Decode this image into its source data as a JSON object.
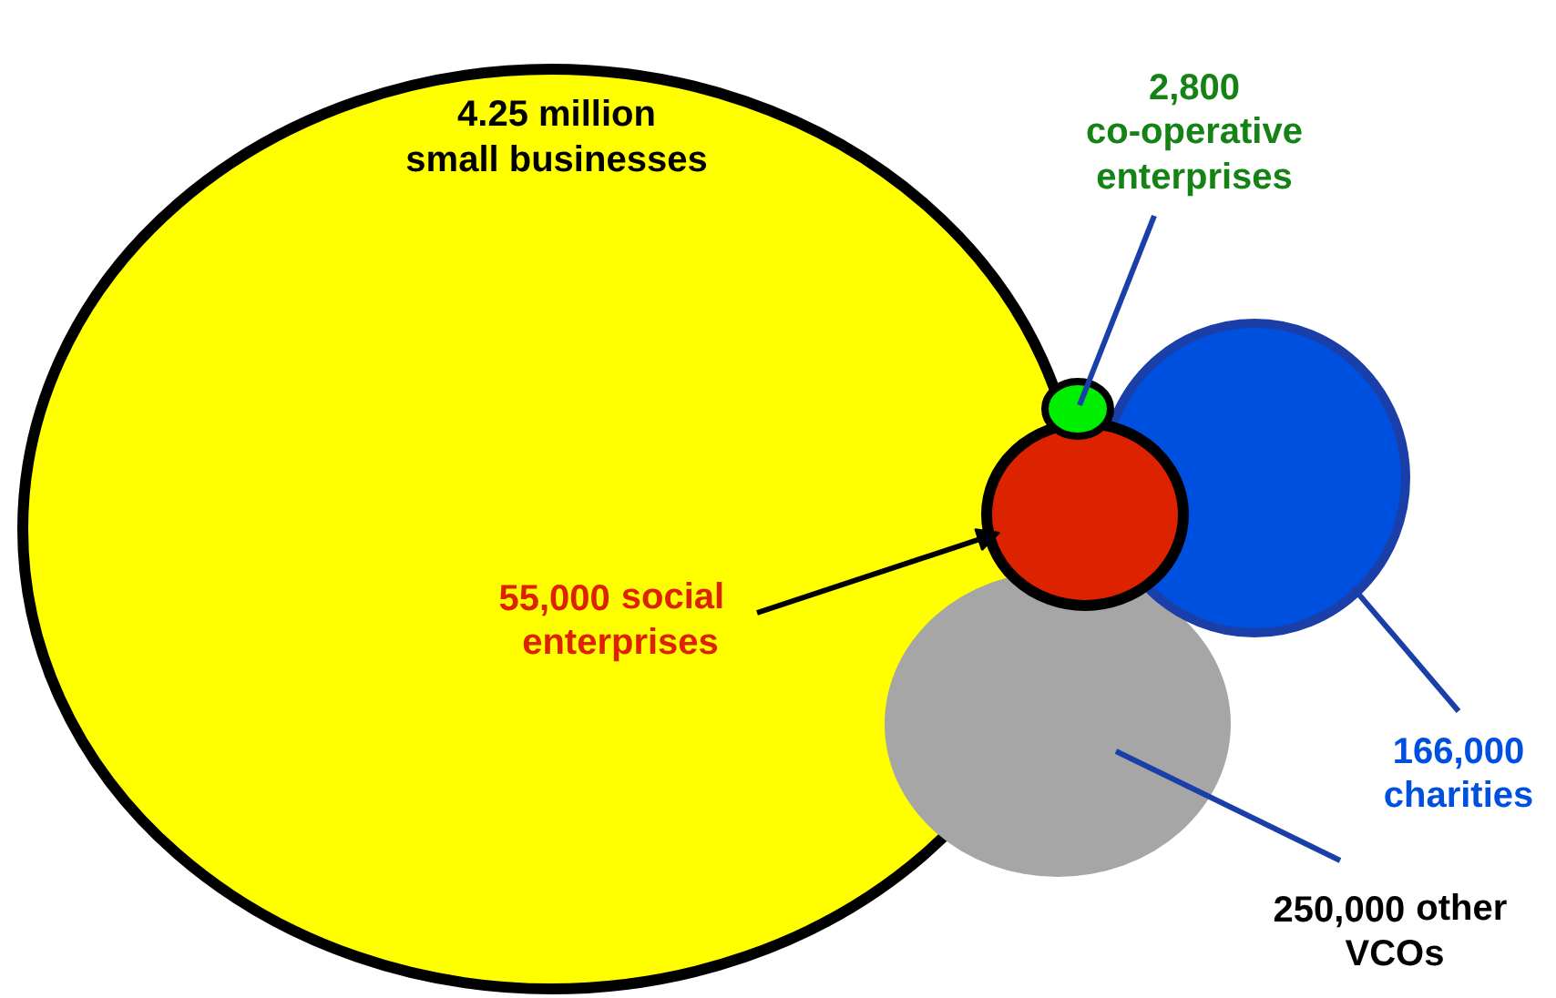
{
  "chart_data": {
    "type": "other",
    "categories": [
      "small businesses",
      "co-operative enterprises",
      "social enterprises",
      "charities",
      "other VCOs"
    ],
    "values": [
      4250000,
      2800,
      55000,
      166000,
      250000
    ],
    "value_labels": [
      "4.25 million",
      "2,800",
      "55,000",
      "166,000",
      "250,000"
    ],
    "colors": [
      "#ffff00",
      "#00ee00",
      "#dd2200",
      "#0050e0",
      "#a6a6a6"
    ]
  }
}
